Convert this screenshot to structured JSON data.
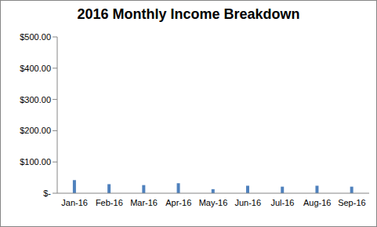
{
  "chart_data": {
    "type": "bar",
    "title": "2016 Monthly Income Breakdown",
    "categories": [
      "Jan-16",
      "Feb-16",
      "Mar-16",
      "Apr-16",
      "May-16",
      "Jun-16",
      "Jul-16",
      "Aug-16",
      "Sep-16"
    ],
    "values": [
      42,
      29,
      26,
      32,
      13,
      24,
      21,
      24,
      21
    ],
    "color": "#4f81bd",
    "ylim": [
      0,
      500
    ],
    "yticks": [
      {
        "value": 0,
        "label": "$-"
      },
      {
        "value": 100,
        "label": "$100.00"
      },
      {
        "value": 200,
        "label": "$200.00"
      },
      {
        "value": 300,
        "label": "$300.00"
      },
      {
        "value": 400,
        "label": "$400.00"
      },
      {
        "value": 500,
        "label": "$500.00"
      }
    ],
    "grid": false
  }
}
